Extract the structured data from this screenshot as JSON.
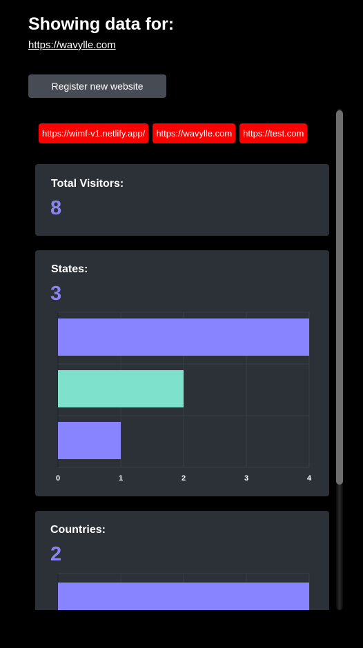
{
  "header": {
    "title": "Showing data for:",
    "current_site": "https://wavylle.com",
    "register_label": "Register new website"
  },
  "websites": [
    "https://wimf-v1.netlify.app/",
    "https://wavylle.com",
    "https://test.com"
  ],
  "cards": {
    "total_visitors": {
      "label": "Total Visitors:",
      "value": "8"
    },
    "states": {
      "label": "States:",
      "value": "3"
    },
    "countries": {
      "label": "Countries:",
      "value": "2"
    }
  },
  "colors": {
    "chip_bg": "#ff0000",
    "card_bg": "#2b3137",
    "accent": "#8b84f2",
    "bar_purple": "#8884ff",
    "bar_teal": "#7ee1cb"
  },
  "chart_data": [
    {
      "type": "bar",
      "orientation": "horizontal",
      "title": "",
      "categories": [
        "",
        "",
        ""
      ],
      "values": [
        4,
        2,
        1
      ],
      "colors": [
        "#8884ff",
        "#7ee1cb",
        "#8884ff"
      ],
      "xlim": [
        0,
        4
      ],
      "xticks": [
        "0",
        "1",
        "2",
        "3",
        "4"
      ],
      "grid": true
    },
    {
      "type": "bar",
      "orientation": "horizontal",
      "title": "",
      "categories": [
        ""
      ],
      "values": [
        4
      ],
      "colors": [
        "#8884ff"
      ],
      "xlim": [
        0,
        4
      ],
      "grid": true
    }
  ]
}
